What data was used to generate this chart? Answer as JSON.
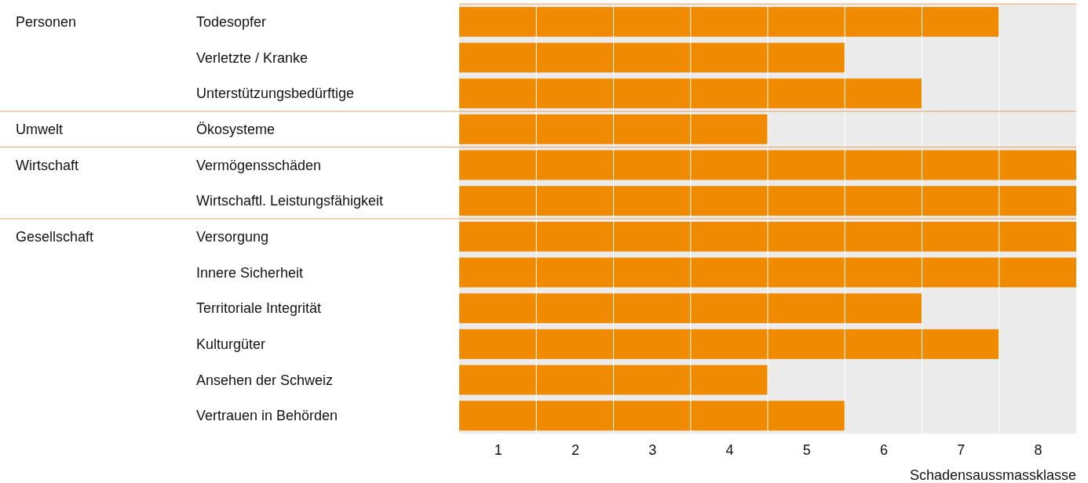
{
  "chart_data": {
    "type": "bar",
    "orientation": "horizontal",
    "xlabel": "Schadensaussmassklasse",
    "categories": [
      "Todesopfer",
      "Verletzte / Kranke",
      "Unterstützungsbedürftige",
      "Ökosysteme",
      "Vermögensschäden",
      "Wirtschaftl. Leistungsfähigkeit",
      "Versorgung",
      "Innere Sicherheit",
      "Territoriale Integrität",
      "Kulturgüter",
      "Ansehen der Schweiz",
      "Vertrauen in Behörden"
    ],
    "values": [
      7,
      5,
      6,
      4,
      8,
      8,
      8,
      8,
      6,
      7,
      4,
      5
    ],
    "color": "#f08a00",
    "xlim": [
      0,
      8
    ],
    "xticks": [
      {
        "value": 0.5,
        "label": "1"
      },
      {
        "value": 1.5,
        "label": "2"
      },
      {
        "value": 2.5,
        "label": "3"
      },
      {
        "value": 3.5,
        "label": "4"
      },
      {
        "value": 4.5,
        "label": "5"
      },
      {
        "value": 5.5,
        "label": "6"
      },
      {
        "value": 6.5,
        "label": "7"
      },
      {
        "value": 7.5,
        "label": "8"
      }
    ],
    "annotations": [
      "Personen",
      "Umwelt",
      "Wirtschaft",
      "Gesellschaft"
    ]
  }
}
